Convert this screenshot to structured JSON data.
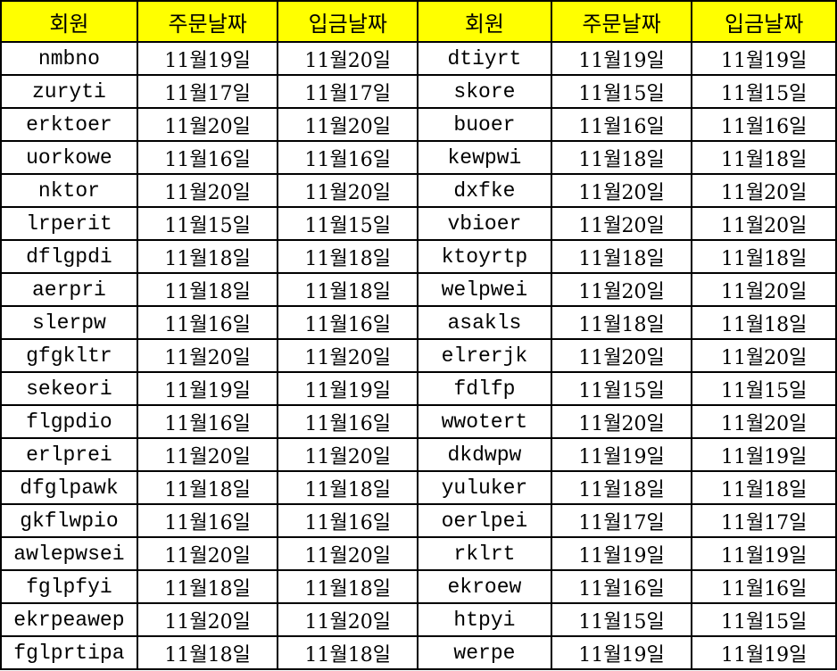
{
  "header_color": "#ffff00",
  "headers": [
    "회원",
    "주문날짜",
    "입금날짜",
    "회원",
    "주문날짜",
    "입금날짜"
  ],
  "rows": [
    [
      "nmbno",
      "11월19일",
      "11월20일",
      "dtiyrt",
      "11월19일",
      "11월19일"
    ],
    [
      "zuryti",
      "11월17일",
      "11월17일",
      "skore",
      "11월15일",
      "11월15일"
    ],
    [
      "erktoer",
      "11월20일",
      "11월20일",
      "buoer",
      "11월16일",
      "11월16일"
    ],
    [
      "uorkowe",
      "11월16일",
      "11월16일",
      "kewpwi",
      "11월18일",
      "11월18일"
    ],
    [
      "nktor",
      "11월20일",
      "11월20일",
      "dxfke",
      "11월20일",
      "11월20일"
    ],
    [
      "lrperit",
      "11월15일",
      "11월15일",
      "vbioer",
      "11월20일",
      "11월20일"
    ],
    [
      "dflgpdi",
      "11월18일",
      "11월18일",
      "ktoyrtp",
      "11월18일",
      "11월18일"
    ],
    [
      "aerpri",
      "11월18일",
      "11월18일",
      "welpwei",
      "11월20일",
      "11월20일"
    ],
    [
      "slerpw",
      "11월16일",
      "11월16일",
      "asakls",
      "11월18일",
      "11월18일"
    ],
    [
      "gfgkltr",
      "11월20일",
      "11월20일",
      "elrerjk",
      "11월20일",
      "11월20일"
    ],
    [
      "sekeori",
      "11월19일",
      "11월19일",
      "fdlfp",
      "11월15일",
      "11월15일"
    ],
    [
      "flgpdio",
      "11월16일",
      "11월16일",
      "wwotert",
      "11월20일",
      "11월20일"
    ],
    [
      "erlprei",
      "11월20일",
      "11월20일",
      "dkdwpw",
      "11월19일",
      "11월19일"
    ],
    [
      "dfglpawk",
      "11월18일",
      "11월18일",
      "yuluker",
      "11월18일",
      "11월18일"
    ],
    [
      "gkflwpio",
      "11월16일",
      "11월16일",
      "oerlpei",
      "11월17일",
      "11월17일"
    ],
    [
      "awlepwsei",
      "11월20일",
      "11월20일",
      "rklrt",
      "11월19일",
      "11월19일"
    ],
    [
      "fglpfyi",
      "11월18일",
      "11월18일",
      "ekroew",
      "11월16일",
      "11월16일"
    ],
    [
      "ekrpeawep",
      "11월20일",
      "11월20일",
      "htpyi",
      "11월15일",
      "11월15일"
    ],
    [
      "fglprtipa",
      "11월18일",
      "11월18일",
      "werpe",
      "11월19일",
      "11월19일"
    ]
  ]
}
